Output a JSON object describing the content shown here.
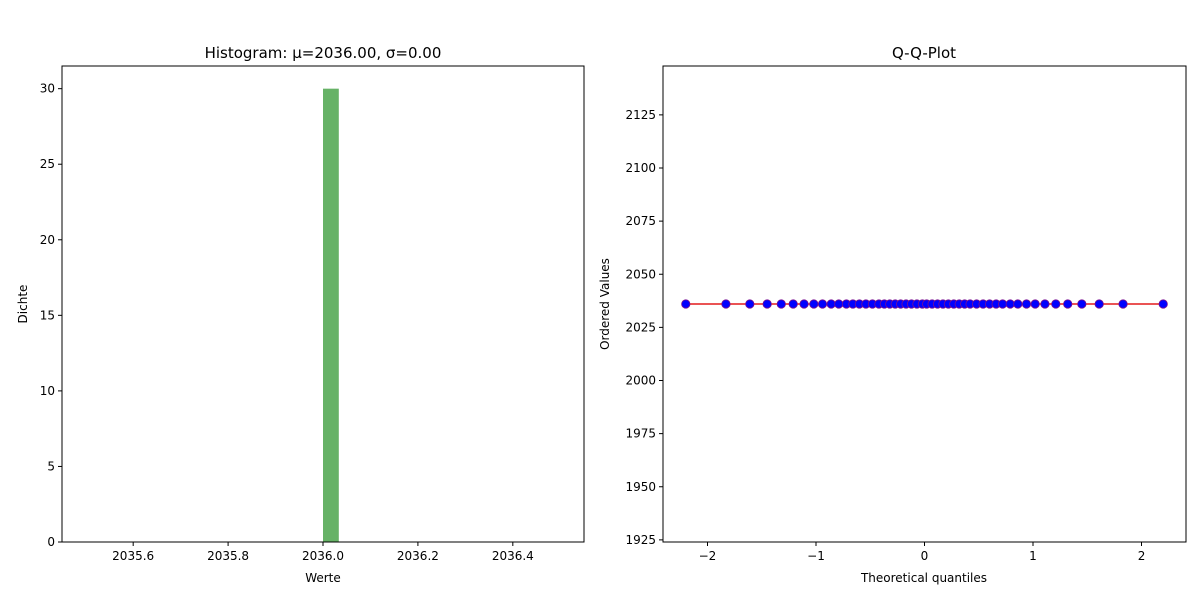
{
  "chart_data": [
    {
      "type": "bar",
      "title": "Histogram: μ=2036.00, σ=0.00",
      "xlabel": "Werte",
      "ylabel": "Dichte",
      "xlim": [
        2035.45,
        2036.55
      ],
      "ylim": [
        0,
        31.5
      ],
      "xticks": [
        2035.6,
        2035.8,
        2036.0,
        2036.2,
        2036.4
      ],
      "xtick_labels": [
        "2035.6",
        "2035.8",
        "2036.0",
        "2036.2",
        "2036.4"
      ],
      "yticks": [
        0,
        5,
        10,
        15,
        20,
        25,
        30
      ],
      "ytick_labels": [
        "0",
        "5",
        "10",
        "15",
        "20",
        "25",
        "30"
      ],
      "bars": [
        {
          "x0": 2036.0,
          "x1": 2036.0333,
          "value": 30
        }
      ],
      "bar_color": "#66b266",
      "grid": false
    },
    {
      "type": "scatter",
      "title": "Q-Q-Plot",
      "xlabel": "Theoretical quantiles",
      "ylabel": "Ordered Values",
      "xlim": [
        -2.41,
        2.41
      ],
      "ylim": [
        1924,
        2148
      ],
      "xticks": [
        -2,
        -1,
        0,
        1,
        2
      ],
      "xtick_labels": [
        "−2",
        "−1",
        "0",
        "1",
        "2"
      ],
      "yticks": [
        1925,
        1950,
        1975,
        2000,
        2025,
        2050,
        2075,
        2100,
        2125
      ],
      "ytick_labels": [
        "1925",
        "1950",
        "1975",
        "2000",
        "2025",
        "2050",
        "2075",
        "2100",
        "2125"
      ],
      "points_x": [
        -2.2,
        -1.83,
        -1.61,
        -1.45,
        -1.32,
        -1.21,
        -1.11,
        -1.02,
        -0.94,
        -0.86,
        -0.79,
        -0.72,
        -0.66,
        -0.6,
        -0.54,
        -0.48,
        -0.42,
        -0.37,
        -0.32,
        -0.27,
        -0.22,
        -0.17,
        -0.12,
        -0.07,
        -0.02,
        0.02,
        0.07,
        0.12,
        0.17,
        0.22,
        0.27,
        0.32,
        0.37,
        0.42,
        0.48,
        0.54,
        0.6,
        0.66,
        0.72,
        0.79,
        0.86,
        0.94,
        1.02,
        1.11,
        1.21,
        1.32,
        1.45,
        1.61,
        1.83,
        2.2
      ],
      "points_y_value": 2036,
      "fit_line": {
        "x": [
          -2.2,
          2.2
        ],
        "y": [
          2036,
          2036
        ]
      },
      "point_color": "#0000ff",
      "point_edge_color": "#7a0f8f",
      "line_color": "#e31a1c",
      "grid": false
    }
  ]
}
